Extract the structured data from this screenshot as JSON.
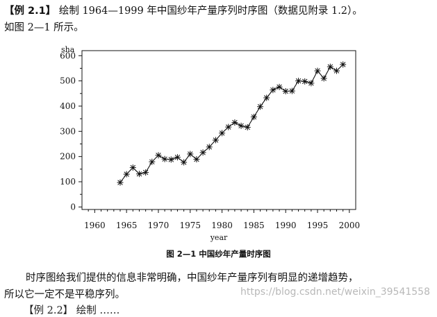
{
  "text": {
    "example_label": "【例 2.1】",
    "example_text": "绘制 1964—1999 年中国纱年产量序列时序图（数据见附录 1.2）。",
    "line2": "如图 2—1 所示。",
    "caption": "图 2—1   中国纱年产量时序图",
    "para1": "时序图给我们提供的信息非常明确，中国纱年产量序列有明显的递增趋势，",
    "para2": "所以它一定不是平稳序列。",
    "cut_line": "【例 2.2】 绘制 ……",
    "watermark": "https://blog.csdn.net/weixin_39541558"
  },
  "chart_data": {
    "type": "line",
    "marker": "asterisk",
    "ylabel": "sha",
    "xlabel": "year",
    "xlim": [
      1958,
      2001
    ],
    "ylim": [
      -10,
      620
    ],
    "xticks": [
      1960,
      1965,
      1970,
      1975,
      1980,
      1985,
      1990,
      1995,
      2000
    ],
    "yticks": [
      0,
      100,
      200,
      300,
      400,
      500,
      600
    ],
    "x": [
      1964,
      1965,
      1966,
      1967,
      1968,
      1969,
      1970,
      1971,
      1972,
      1973,
      1974,
      1975,
      1976,
      1977,
      1978,
      1979,
      1980,
      1981,
      1982,
      1983,
      1984,
      1985,
      1986,
      1987,
      1988,
      1989,
      1990,
      1991,
      1992,
      1993,
      1994,
      1995,
      1996,
      1997,
      1998,
      1999
    ],
    "y": [
      97,
      130,
      156,
      131,
      137,
      179,
      205,
      190,
      188,
      197,
      177,
      210,
      189,
      216,
      238,
      265,
      293,
      317,
      335,
      322,
      316,
      357,
      398,
      433,
      464,
      476,
      459,
      460,
      500,
      498,
      491,
      540,
      510,
      556,
      540,
      565
    ]
  }
}
